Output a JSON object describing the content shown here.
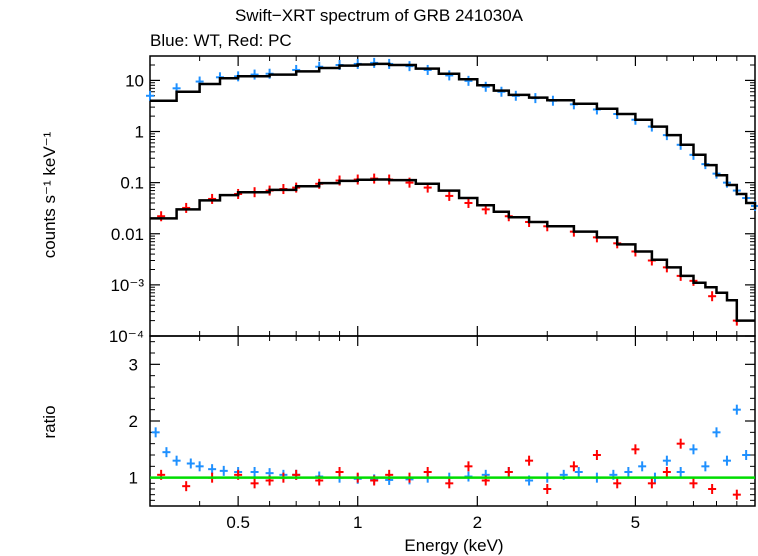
{
  "chart_data": [
    {
      "type": "scatter",
      "title": "Swift−XRT spectrum of GRB 241030A",
      "subtitle": "Blue: WT, Red: PC",
      "xlabel": "Energy (keV)",
      "ylabel": "counts s⁻¹ keV⁻¹",
      "xscale": "log",
      "yscale": "log",
      "xlim": [
        0.3,
        10
      ],
      "ylim": [
        0.0001,
        30
      ],
      "x_ticks": [
        "0.5",
        "1",
        "2",
        "5"
      ],
      "y_ticks": [
        "10",
        "1",
        "0.1",
        "0.01",
        "10⁻³",
        "10⁻⁴"
      ],
      "series": [
        {
          "name": "WT",
          "color": "#1e90ff",
          "x": [
            0.3,
            0.35,
            0.4,
            0.45,
            0.5,
            0.55,
            0.6,
            0.7,
            0.8,
            0.9,
            1.0,
            1.1,
            1.2,
            1.35,
            1.5,
            1.7,
            1.9,
            2.1,
            2.3,
            2.5,
            2.8,
            3.1,
            3.5,
            4.0,
            4.5,
            5.0,
            5.5,
            6.0,
            6.5,
            7.0,
            7.5,
            8.0,
            8.5,
            9.0,
            9.5,
            10.0
          ],
          "y": [
            5.0,
            7.0,
            9.5,
            11.5,
            12.0,
            13.0,
            13.5,
            16.0,
            18.5,
            20.0,
            21.0,
            22.0,
            21.0,
            19.0,
            16.0,
            12.5,
            9.8,
            7.5,
            6.0,
            5.0,
            4.5,
            4.0,
            3.4,
            2.7,
            2.2,
            1.7,
            1.25,
            0.85,
            0.55,
            0.35,
            0.23,
            0.15,
            0.1,
            0.07,
            0.05,
            0.035
          ]
        },
        {
          "name": "PC",
          "color": "#ff0000",
          "x": [
            0.32,
            0.37,
            0.43,
            0.5,
            0.55,
            0.6,
            0.65,
            0.7,
            0.8,
            0.9,
            1.0,
            1.1,
            1.2,
            1.35,
            1.5,
            1.7,
            1.9,
            2.1,
            2.4,
            2.7,
            3.0,
            3.5,
            4.0,
            4.5,
            5.0,
            5.5,
            6.0,
            6.5,
            7.0,
            7.8,
            9.0
          ],
          "y": [
            0.022,
            0.032,
            0.048,
            0.06,
            0.065,
            0.07,
            0.075,
            0.08,
            0.095,
            0.11,
            0.115,
            0.12,
            0.115,
            0.1,
            0.08,
            0.055,
            0.04,
            0.03,
            0.022,
            0.017,
            0.014,
            0.011,
            0.0085,
            0.0065,
            0.0045,
            0.003,
            0.0022,
            0.0015,
            0.0012,
            0.0006,
            0.0002
          ]
        }
      ],
      "model": {
        "x": [
          0.3,
          0.35,
          0.4,
          0.45,
          0.5,
          0.6,
          0.7,
          0.8,
          0.9,
          1.0,
          1.1,
          1.2,
          1.4,
          1.6,
          1.8,
          2.0,
          2.2,
          2.4,
          2.7,
          3.0,
          3.5,
          4.0,
          4.5,
          5.0,
          5.5,
          6.0,
          6.5,
          7.0,
          7.5,
          8.0,
          8.5,
          9.0,
          9.5,
          10.0
        ],
        "wt_y": [
          4.0,
          6.0,
          8.5,
          11.0,
          12.0,
          13.0,
          15.0,
          17.5,
          19.5,
          20.5,
          21.0,
          20.0,
          17.0,
          13.5,
          10.5,
          8.0,
          6.3,
          5.2,
          4.6,
          4.1,
          3.5,
          2.8,
          2.2,
          1.7,
          1.25,
          0.85,
          0.55,
          0.35,
          0.22,
          0.14,
          0.09,
          0.06,
          0.04,
          0.03
        ],
        "pc_y": [
          0.02,
          0.03,
          0.045,
          0.057,
          0.065,
          0.072,
          0.085,
          0.098,
          0.108,
          0.114,
          0.115,
          0.112,
          0.095,
          0.07,
          0.05,
          0.036,
          0.027,
          0.021,
          0.017,
          0.014,
          0.011,
          0.0085,
          0.0062,
          0.0045,
          0.0031,
          0.0022,
          0.0015,
          0.0011,
          0.0009,
          0.0007,
          0.0005,
          0.0002,
          0.0002,
          0.0002
        ]
      }
    },
    {
      "type": "scatter",
      "xlabel": "Energy (keV)",
      "ylabel": "ratio",
      "xscale": "log",
      "xlim": [
        0.3,
        10
      ],
      "ylim": [
        0.5,
        3.5
      ],
      "x_ticks": [
        "0.5",
        "1",
        "2",
        "5"
      ],
      "y_ticks": [
        "1",
        "2",
        "3"
      ],
      "reference_line": {
        "y": 1,
        "color": "#00dd00"
      },
      "series": [
        {
          "name": "WT",
          "color": "#1e90ff",
          "x": [
            0.31,
            0.33,
            0.35,
            0.38,
            0.4,
            0.43,
            0.46,
            0.5,
            0.55,
            0.6,
            0.65,
            0.7,
            0.8,
            0.9,
            1.0,
            1.1,
            1.2,
            1.35,
            1.5,
            1.7,
            1.9,
            2.1,
            2.4,
            2.7,
            3.0,
            3.3,
            3.6,
            4.0,
            4.4,
            4.8,
            5.2,
            5.6,
            6.0,
            6.5,
            7.0,
            7.5,
            8.0,
            8.5,
            9.0,
            9.5
          ],
          "y": [
            1.8,
            1.45,
            1.3,
            1.25,
            1.2,
            1.15,
            1.12,
            1.1,
            1.1,
            1.08,
            1.05,
            1.05,
            1.02,
            1.0,
            0.98,
            0.97,
            0.96,
            0.97,
            1.0,
            1.0,
            1.02,
            1.05,
            1.1,
            0.95,
            1.0,
            1.05,
            1.1,
            1.0,
            1.05,
            1.1,
            1.2,
            1.0,
            1.3,
            1.1,
            1.5,
            1.2,
            1.8,
            1.3,
            2.2,
            1.4
          ]
        },
        {
          "name": "PC",
          "color": "#ff0000",
          "x": [
            0.32,
            0.37,
            0.43,
            0.5,
            0.55,
            0.6,
            0.65,
            0.7,
            0.8,
            0.9,
            1.0,
            1.1,
            1.2,
            1.35,
            1.5,
            1.7,
            1.9,
            2.1,
            2.4,
            2.7,
            3.0,
            3.5,
            4.0,
            4.5,
            5.0,
            5.5,
            6.0,
            6.5,
            7.0,
            7.8,
            9.0
          ],
          "y": [
            1.05,
            0.85,
            1.0,
            1.05,
            0.9,
            0.95,
            1.0,
            1.05,
            0.95,
            1.1,
            1.0,
            0.95,
            1.05,
            1.0,
            1.1,
            0.9,
            1.2,
            0.95,
            1.1,
            1.3,
            0.8,
            1.2,
            1.4,
            0.9,
            1.5,
            0.9,
            1.1,
            1.6,
            0.9,
            0.8,
            0.7
          ]
        }
      ]
    }
  ]
}
